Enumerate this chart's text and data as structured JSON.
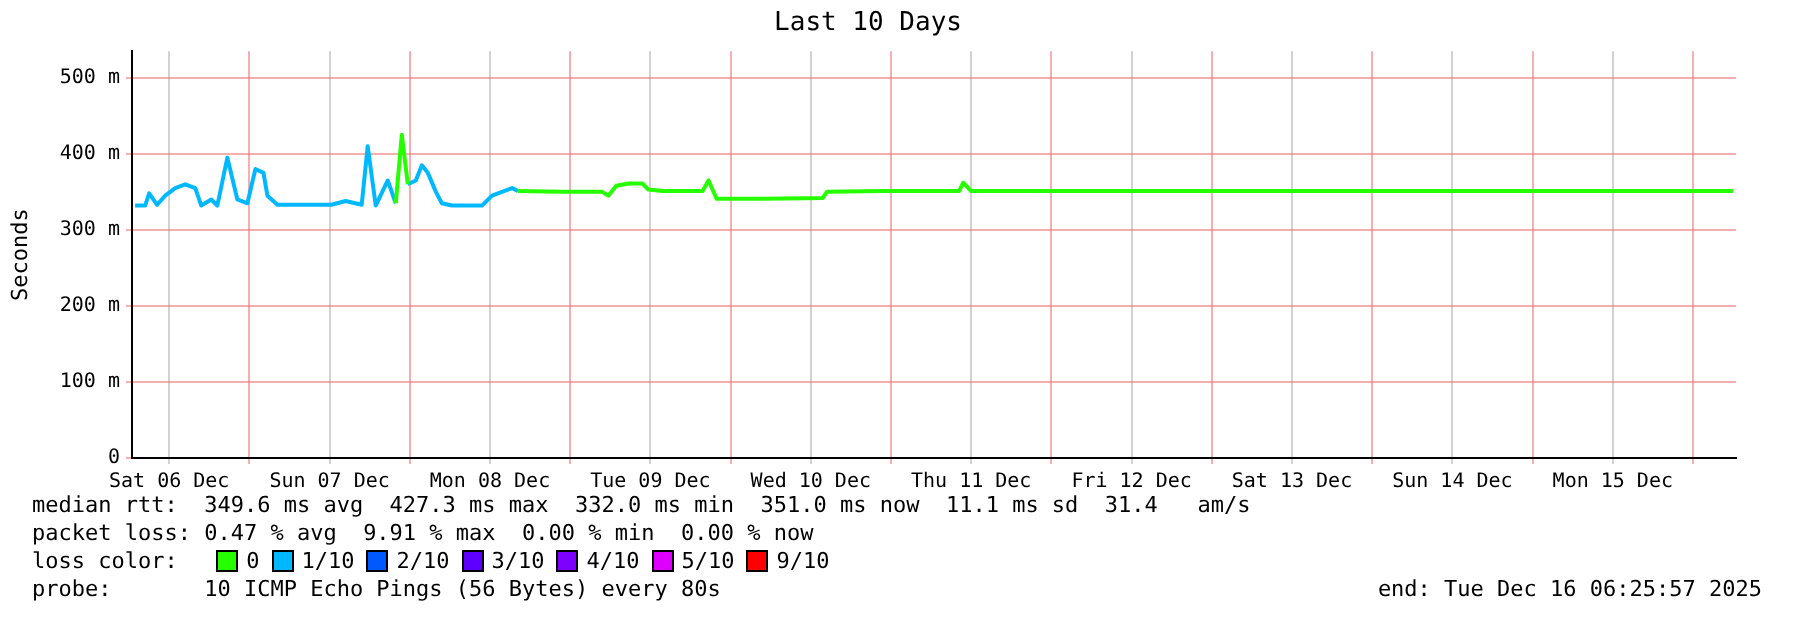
{
  "chart_data": {
    "type": "line",
    "title": "Last 10 Days",
    "ylabel": "Seconds",
    "legend_title": "loss color:",
    "legend": "bottom",
    "grid": true,
    "marker": "none",
    "xlim": [
      "2025-12-06T06:26",
      "2025-12-16T06:26"
    ],
    "xticks": [
      {
        "value": "2025-12-06T12:00",
        "label": "Sat 06 Dec"
      },
      {
        "value": "2025-12-07T00:00",
        "label": null
      },
      {
        "value": "2025-12-07T12:00",
        "label": "Sun 07 Dec"
      },
      {
        "value": "2025-12-08T00:00",
        "label": null
      },
      {
        "value": "2025-12-08T12:00",
        "label": "Mon 08 Dec"
      },
      {
        "value": "2025-12-09T00:00",
        "label": null
      },
      {
        "value": "2025-12-09T12:00",
        "label": "Tue 09 Dec"
      },
      {
        "value": "2025-12-10T00:00",
        "label": null
      },
      {
        "value": "2025-12-10T12:00",
        "label": "Wed 10 Dec"
      },
      {
        "value": "2025-12-11T00:00",
        "label": null
      },
      {
        "value": "2025-12-11T12:00",
        "label": "Thu 11 Dec"
      },
      {
        "value": "2025-12-12T00:00",
        "label": null
      },
      {
        "value": "2025-12-12T12:00",
        "label": "Fri 12 Dec"
      },
      {
        "value": "2025-12-13T00:00",
        "label": null
      },
      {
        "value": "2025-12-13T12:00",
        "label": "Sat 13 Dec"
      },
      {
        "value": "2025-12-14T00:00",
        "label": null
      },
      {
        "value": "2025-12-14T12:00",
        "label": "Sun 14 Dec"
      },
      {
        "value": "2025-12-15T00:00",
        "label": null
      },
      {
        "value": "2025-12-15T12:00",
        "label": "Mon 15 Dec"
      },
      {
        "value": "2025-12-16T00:00",
        "label": null
      }
    ],
    "ylim": [
      0,
      535
    ],
    "yticks": [
      {
        "value": 0,
        "label": "0"
      },
      {
        "value": 100,
        "label": "100 m"
      },
      {
        "value": 200,
        "label": "200 m"
      },
      {
        "value": 300,
        "label": "300 m"
      },
      {
        "value": 400,
        "label": "400 m"
      },
      {
        "value": 500,
        "label": "500 m"
      }
    ],
    "x": [
      "2025-12-06T06:54",
      "2025-12-06T08:24",
      "2025-12-06T09:00",
      "2025-12-06T10:12",
      "2025-12-06T11:24",
      "2025-12-06T12:54",
      "2025-12-06T14:24",
      "2025-12-06T15:54",
      "2025-12-06T16:48",
      "2025-12-06T18:18",
      "2025-12-06T19:12",
      "2025-12-06T20:42",
      "2025-12-06T22:12",
      "2025-12-06T23:42",
      "2025-12-07T00:54",
      "2025-12-07T02:06",
      "2025-12-07T02:42",
      "2025-12-07T04:12",
      "2025-12-07T07:48",
      "2025-12-07T12:18",
      "2025-12-07T14:24",
      "2025-12-07T16:48",
      "2025-12-07T17:42",
      "2025-12-07T18:54",
      "2025-12-07T20:42",
      "2025-12-07T21:54",
      "2025-12-07T22:48",
      "2025-12-07T23:42",
      "2025-12-08T00:54",
      "2025-12-08T01:48",
      "2025-12-08T02:42",
      "2025-12-08T03:54",
      "2025-12-08T04:48",
      "2025-12-08T06:18",
      "2025-12-08T10:48",
      "2025-12-08T12:18",
      "2025-12-08T13:48",
      "2025-12-08T15:18",
      "2025-12-08T16:12",
      "2025-12-08T22:48",
      "2025-12-09T04:48",
      "2025-12-09T05:42",
      "2025-12-09T06:54",
      "2025-12-09T08:42",
      "2025-12-09T10:48",
      "2025-12-09T11:42",
      "2025-12-09T13:48",
      "2025-12-09T19:48",
      "2025-12-09T20:42",
      "2025-12-09T21:54",
      "2025-12-10T04:48",
      "2025-12-10T13:48",
      "2025-12-10T14:24",
      "2025-12-10T22:48",
      "2025-12-11T04:48",
      "2025-12-11T07:48",
      "2025-12-11T10:12",
      "2025-12-11T10:48",
      "2025-12-11T12:00",
      "2025-12-11T16:48",
      "2025-12-11T22:48",
      "2025-12-12T07:48",
      "2025-12-12T16:48",
      "2025-12-13T04:48",
      "2025-12-13T16:48",
      "2025-12-14T04:48",
      "2025-12-14T16:48",
      "2025-12-15T04:48",
      "2025-12-15T16:48",
      "2025-12-16T06:00"
    ],
    "series": [
      {
        "name": "0",
        "color": "#26ff00",
        "values": [
          null,
          null,
          null,
          null,
          null,
          null,
          null,
          null,
          null,
          null,
          null,
          null,
          null,
          null,
          null,
          null,
          null,
          null,
          null,
          null,
          null,
          null,
          null,
          null,
          null,
          335,
          425,
          360,
          null,
          null,
          null,
          null,
          null,
          null,
          null,
          null,
          null,
          null,
          351,
          350,
          350,
          345,
          358,
          361,
          361,
          353,
          351,
          351,
          365,
          341,
          341,
          342,
          350,
          351,
          351,
          351,
          351,
          362,
          351,
          351,
          351,
          351,
          351,
          351,
          351,
          351,
          351,
          351,
          351,
          351
        ]
      },
      {
        "name": "1/10",
        "color": "#00b8ff",
        "values": [
          332,
          332,
          348,
          333,
          345,
          355,
          360,
          355,
          332,
          340,
          332,
          395,
          340,
          335,
          380,
          375,
          345,
          333,
          333,
          333,
          338,
          333,
          410,
          332,
          365,
          335,
          null,
          360,
          365,
          385,
          375,
          350,
          335,
          332,
          332,
          345,
          350,
          355,
          351,
          null,
          null,
          null,
          null,
          null,
          null,
          null,
          null,
          null,
          null,
          null,
          null,
          null,
          null,
          null,
          null,
          null,
          null,
          null,
          null,
          null,
          null,
          null,
          null,
          null,
          null,
          null,
          null,
          null,
          null,
          null
        ]
      },
      {
        "name": "2/10",
        "color": "#0059ff",
        "values": [
          null,
          null,
          null,
          null,
          null,
          null,
          null,
          null,
          null,
          null,
          null,
          null,
          null,
          null,
          null,
          null,
          null,
          null,
          null,
          null,
          null,
          null,
          null,
          null,
          null,
          null,
          null,
          null,
          null,
          null,
          null,
          null,
          null,
          null,
          null,
          null,
          null,
          null,
          null,
          null,
          null,
          null,
          null,
          null,
          null,
          null,
          null,
          null,
          null,
          null,
          null,
          null,
          null,
          null,
          null,
          null,
          null,
          null,
          null,
          null,
          null,
          null,
          null,
          null,
          null,
          null,
          null,
          null,
          null,
          null
        ]
      },
      {
        "name": "3/10",
        "color": "#5e00ff",
        "values": [
          null,
          null,
          null,
          null,
          null,
          null,
          null,
          null,
          null,
          null,
          null,
          null,
          null,
          null,
          null,
          null,
          null,
          null,
          null,
          null,
          null,
          null,
          null,
          null,
          null,
          null,
          null,
          null,
          null,
          null,
          null,
          null,
          null,
          null,
          null,
          null,
          null,
          null,
          null,
          null,
          null,
          null,
          null,
          null,
          null,
          null,
          null,
          null,
          null,
          null,
          null,
          null,
          null,
          null,
          null,
          null,
          null,
          null,
          null,
          null,
          null,
          null,
          null,
          null,
          null,
          null,
          null,
          null,
          null,
          null
        ]
      },
      {
        "name": "4/10",
        "color": "#7e00ff",
        "values": [
          null,
          null,
          null,
          null,
          null,
          null,
          null,
          null,
          null,
          null,
          null,
          null,
          null,
          null,
          null,
          null,
          null,
          null,
          null,
          null,
          null,
          null,
          null,
          null,
          null,
          null,
          null,
          null,
          null,
          null,
          null,
          null,
          null,
          null,
          null,
          null,
          null,
          null,
          null,
          null,
          null,
          null,
          null,
          null,
          null,
          null,
          null,
          null,
          null,
          null,
          null,
          null,
          null,
          null,
          null,
          null,
          null,
          null,
          null,
          null,
          null,
          null,
          null,
          null,
          null,
          null,
          null,
          null,
          null,
          null
        ]
      },
      {
        "name": "5/10",
        "color": "#dd00ff",
        "values": [
          null,
          null,
          null,
          null,
          null,
          null,
          null,
          null,
          null,
          null,
          null,
          null,
          null,
          null,
          null,
          null,
          null,
          null,
          null,
          null,
          null,
          null,
          null,
          null,
          null,
          null,
          null,
          null,
          null,
          null,
          null,
          null,
          null,
          null,
          null,
          null,
          null,
          null,
          null,
          null,
          null,
          null,
          null,
          null,
          null,
          null,
          null,
          null,
          null,
          null,
          null,
          null,
          null,
          null,
          null,
          null,
          null,
          null,
          null,
          null,
          null,
          null,
          null,
          null,
          null,
          null,
          null,
          null,
          null,
          null
        ]
      },
      {
        "name": "9/10",
        "color": "#ff0000",
        "values": [
          null,
          null,
          null,
          null,
          null,
          null,
          null,
          null,
          null,
          null,
          null,
          null,
          null,
          null,
          null,
          null,
          null,
          null,
          null,
          null,
          null,
          null,
          null,
          null,
          null,
          null,
          null,
          null,
          null,
          null,
          null,
          null,
          null,
          null,
          null,
          null,
          null,
          null,
          null,
          null,
          null,
          null,
          null,
          null,
          null,
          null,
          null,
          null,
          null,
          null,
          null,
          null,
          null,
          null,
          null,
          null,
          null,
          null,
          null,
          null,
          null,
          null,
          null,
          null,
          null,
          null,
          null,
          null,
          null,
          null
        ]
      }
    ],
    "annotations": [
      "median rtt:  349.6 ms avg  427.3 ms max  332.0 ms min  351.0 ms now  11.1 ms sd  31.4   am/s",
      "packet loss: 0.47 % avg  9.91 % max  0.00 % min  0.00 % now",
      "probe:       10 ICMP Echo Pings (56 Bytes) every 80s",
      "end: Tue Dec 16 06:25:57 2025"
    ]
  }
}
